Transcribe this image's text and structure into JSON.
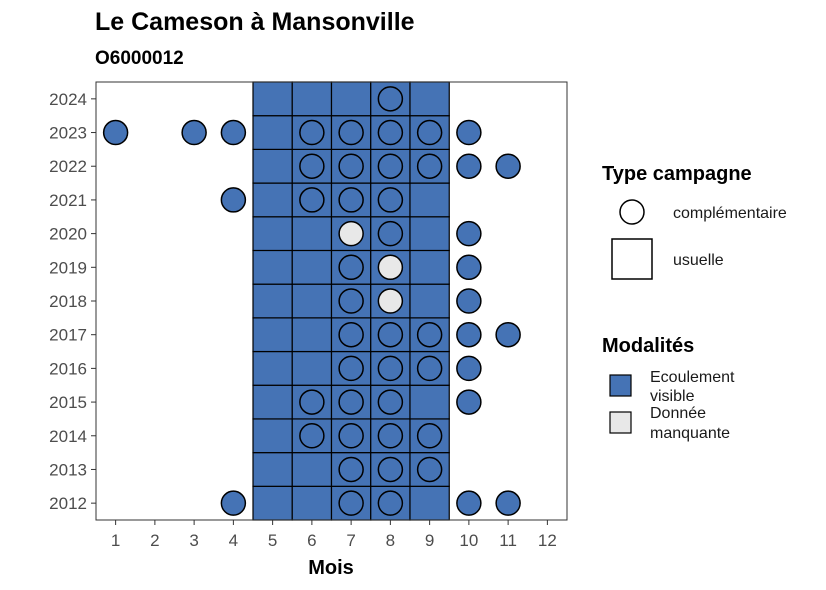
{
  "chart_data": {
    "type": "heatmap",
    "title": "Le Cameson à Mansonville",
    "subtitle": "O6000012",
    "xlabel": "Mois",
    "ylabel": "",
    "x_ticks": [
      "1",
      "2",
      "3",
      "4",
      "5",
      "6",
      "7",
      "8",
      "9",
      "10",
      "11",
      "12"
    ],
    "y_ticks": [
      "2012",
      "2013",
      "2014",
      "2015",
      "2016",
      "2017",
      "2018",
      "2019",
      "2020",
      "2021",
      "2022",
      "2023",
      "2024"
    ],
    "xlim": [
      0.5,
      12.5
    ],
    "ylim": [
      2011.5,
      2024.5
    ],
    "grid": false,
    "legend_placement": "right",
    "colors": {
      "Ecoulement visible": "#4573b5",
      "Donnée manquante": "#e8e8e8",
      "border": "#000000"
    },
    "legends": [
      {
        "title": "Type campagne",
        "entries": [
          {
            "label": "complémentaire",
            "shape": "circle"
          },
          {
            "label": "usuelle",
            "shape": "square"
          }
        ]
      },
      {
        "title": "Modalités",
        "entries": [
          {
            "label_lines": [
              "Ecoulement",
              "visible"
            ],
            "key": "Ecoulement visible"
          },
          {
            "label_lines": [
              "Donnée",
              "manquante"
            ],
            "key": "Donnée manquante"
          }
        ]
      }
    ],
    "usuelle": {
      "months": [
        5,
        6,
        7,
        8,
        9
      ],
      "years": [
        2012,
        2013,
        2014,
        2015,
        2016,
        2017,
        2018,
        2019,
        2020,
        2021,
        2022,
        2023,
        2024
      ],
      "modality": "Ecoulement visible"
    },
    "complementaire": [
      {
        "year": 2024,
        "month": 8,
        "modality": "Ecoulement visible"
      },
      {
        "year": 2023,
        "month": 1,
        "modality": "Ecoulement visible"
      },
      {
        "year": 2023,
        "month": 3,
        "modality": "Ecoulement visible"
      },
      {
        "year": 2023,
        "month": 4,
        "modality": "Ecoulement visible"
      },
      {
        "year": 2023,
        "month": 6,
        "modality": "Ecoulement visible"
      },
      {
        "year": 2023,
        "month": 7,
        "modality": "Ecoulement visible"
      },
      {
        "year": 2023,
        "month": 8,
        "modality": "Ecoulement visible"
      },
      {
        "year": 2023,
        "month": 9,
        "modality": "Ecoulement visible"
      },
      {
        "year": 2023,
        "month": 10,
        "modality": "Ecoulement visible"
      },
      {
        "year": 2022,
        "month": 6,
        "modality": "Ecoulement visible"
      },
      {
        "year": 2022,
        "month": 7,
        "modality": "Ecoulement visible"
      },
      {
        "year": 2022,
        "month": 8,
        "modality": "Ecoulement visible"
      },
      {
        "year": 2022,
        "month": 9,
        "modality": "Ecoulement visible"
      },
      {
        "year": 2022,
        "month": 10,
        "modality": "Ecoulement visible"
      },
      {
        "year": 2022,
        "month": 11,
        "modality": "Ecoulement visible"
      },
      {
        "year": 2021,
        "month": 4,
        "modality": "Ecoulement visible"
      },
      {
        "year": 2021,
        "month": 6,
        "modality": "Ecoulement visible"
      },
      {
        "year": 2021,
        "month": 7,
        "modality": "Ecoulement visible"
      },
      {
        "year": 2021,
        "month": 8,
        "modality": "Ecoulement visible"
      },
      {
        "year": 2020,
        "month": 7,
        "modality": "Donnée manquante"
      },
      {
        "year": 2020,
        "month": 8,
        "modality": "Ecoulement visible"
      },
      {
        "year": 2020,
        "month": 10,
        "modality": "Ecoulement visible"
      },
      {
        "year": 2019,
        "month": 7,
        "modality": "Ecoulement visible"
      },
      {
        "year": 2019,
        "month": 8,
        "modality": "Donnée manquante"
      },
      {
        "year": 2019,
        "month": 10,
        "modality": "Ecoulement visible"
      },
      {
        "year": 2018,
        "month": 7,
        "modality": "Ecoulement visible"
      },
      {
        "year": 2018,
        "month": 8,
        "modality": "Donnée manquante"
      },
      {
        "year": 2018,
        "month": 10,
        "modality": "Ecoulement visible"
      },
      {
        "year": 2017,
        "month": 7,
        "modality": "Ecoulement visible"
      },
      {
        "year": 2017,
        "month": 8,
        "modality": "Ecoulement visible"
      },
      {
        "year": 2017,
        "month": 9,
        "modality": "Ecoulement visible"
      },
      {
        "year": 2017,
        "month": 10,
        "modality": "Ecoulement visible"
      },
      {
        "year": 2017,
        "month": 11,
        "modality": "Ecoulement visible"
      },
      {
        "year": 2016,
        "month": 7,
        "modality": "Ecoulement visible"
      },
      {
        "year": 2016,
        "month": 8,
        "modality": "Ecoulement visible"
      },
      {
        "year": 2016,
        "month": 9,
        "modality": "Ecoulement visible"
      },
      {
        "year": 2016,
        "month": 10,
        "modality": "Ecoulement visible"
      },
      {
        "year": 2015,
        "month": 6,
        "modality": "Ecoulement visible"
      },
      {
        "year": 2015,
        "month": 7,
        "modality": "Ecoulement visible"
      },
      {
        "year": 2015,
        "month": 8,
        "modality": "Ecoulement visible"
      },
      {
        "year": 2015,
        "month": 10,
        "modality": "Ecoulement visible"
      },
      {
        "year": 2014,
        "month": 6,
        "modality": "Ecoulement visible"
      },
      {
        "year": 2014,
        "month": 7,
        "modality": "Ecoulement visible"
      },
      {
        "year": 2014,
        "month": 8,
        "modality": "Ecoulement visible"
      },
      {
        "year": 2014,
        "month": 9,
        "modality": "Ecoulement visible"
      },
      {
        "year": 2013,
        "month": 7,
        "modality": "Ecoulement visible"
      },
      {
        "year": 2013,
        "month": 8,
        "modality": "Ecoulement visible"
      },
      {
        "year": 2013,
        "month": 9,
        "modality": "Ecoulement visible"
      },
      {
        "year": 2012,
        "month": 4,
        "modality": "Ecoulement visible"
      },
      {
        "year": 2012,
        "month": 7,
        "modality": "Ecoulement visible"
      },
      {
        "year": 2012,
        "month": 8,
        "modality": "Ecoulement visible"
      },
      {
        "year": 2012,
        "month": 10,
        "modality": "Ecoulement visible"
      },
      {
        "year": 2012,
        "month": 11,
        "modality": "Ecoulement visible"
      }
    ]
  }
}
